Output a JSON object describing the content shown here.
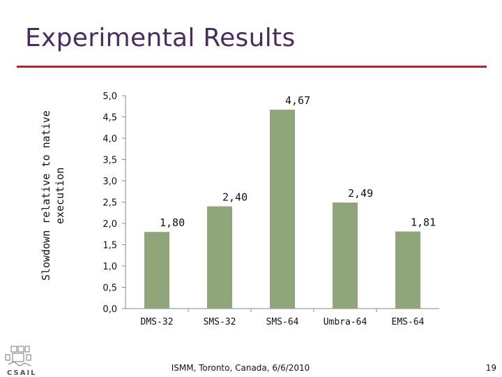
{
  "slide": {
    "title": "Experimental Results",
    "footer": "ISMM, Toronto, Canada, 6/6/2010",
    "page_number": "19",
    "logo_text": "CSAIL"
  },
  "colors": {
    "bar": "#8fa67a",
    "title": "#4a2c63",
    "rule": "#c0202a"
  },
  "chart_data": {
    "type": "bar",
    "title": "",
    "xlabel": "",
    "ylabel": "Slowdown relative to native execution",
    "categories": [
      "DMS-32",
      "SMS-32",
      "SMS-64",
      "Umbra-64",
      "EMS-64"
    ],
    "values": [
      1.8,
      2.4,
      4.67,
      2.49,
      1.81
    ],
    "data_labels": [
      "1,80",
      "2,40",
      "4,67",
      "2,49",
      "1,81"
    ],
    "yticks": [
      "0,0",
      "0,5",
      "1,0",
      "1,5",
      "2,0",
      "2,5",
      "3,0",
      "3,5",
      "4,0",
      "4,5",
      "5,0"
    ],
    "ylim": [
      0,
      5
    ],
    "grid": false,
    "legend": "none"
  }
}
